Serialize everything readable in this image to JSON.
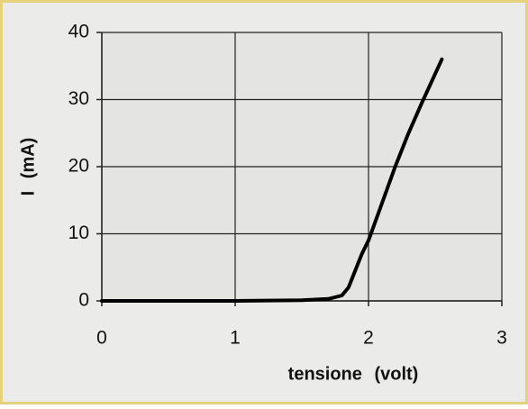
{
  "chart_data": {
    "type": "line",
    "x": [
      0,
      1,
      1.5,
      1.7,
      1.8,
      1.85,
      1.9,
      1.95,
      2.0,
      2.1,
      2.2,
      2.3,
      2.4,
      2.55
    ],
    "values": [
      0,
      0,
      0.1,
      0.3,
      0.8,
      2,
      4.5,
      7,
      9,
      14.5,
      20,
      25,
      29.5,
      36
    ],
    "color": "#000000",
    "x_label": "tensione (volt)",
    "y_label": "I (mA)",
    "xlim": [
      0,
      3
    ],
    "xticks": [
      0,
      1,
      2,
      3
    ],
    "ylim": [
      0,
      40
    ],
    "yticks": [
      0,
      10,
      20,
      30,
      40
    ],
    "grid": true
  }
}
